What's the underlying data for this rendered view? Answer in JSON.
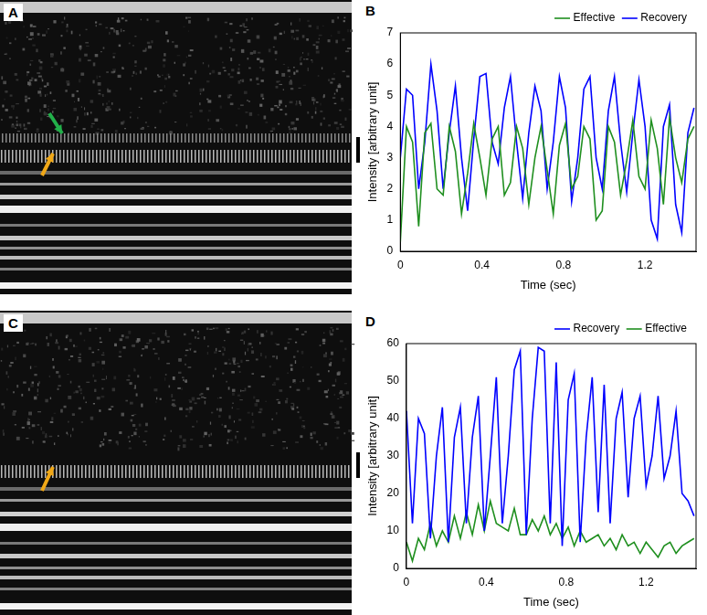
{
  "images": [
    {
      "panel": "A"
    },
    {
      "panel": "C"
    }
  ],
  "chart_data": [
    {
      "panel": "B",
      "type": "line",
      "x_label": "Time (sec)",
      "y_label": "Intensity [arbitrary unit]",
      "x": [
        0,
        0.03,
        0.06,
        0.09,
        0.12,
        0.15,
        0.18,
        0.21,
        0.24,
        0.27,
        0.3,
        0.33,
        0.36,
        0.39,
        0.42,
        0.45,
        0.48,
        0.51,
        0.54,
        0.57,
        0.6,
        0.63,
        0.66,
        0.69,
        0.72,
        0.75,
        0.78,
        0.81,
        0.84,
        0.87,
        0.9,
        0.93,
        0.96,
        0.99,
        1.02,
        1.05,
        1.08,
        1.11,
        1.14,
        1.17,
        1.2,
        1.23,
        1.26,
        1.29,
        1.32,
        1.35,
        1.38,
        1.41,
        1.44
      ],
      "series": [
        {
          "name": "Effective",
          "color": "#1f8f1f",
          "values": [
            0.3,
            4.0,
            3.5,
            0.8,
            3.8,
            4.1,
            2.0,
            1.8,
            4.0,
            3.2,
            1.2,
            2.5,
            4.1,
            3.0,
            1.8,
            3.6,
            4.0,
            1.8,
            2.2,
            4.0,
            3.3,
            1.5,
            3.0,
            4.0,
            2.6,
            1.2,
            3.4,
            4.1,
            2.0,
            2.4,
            4.0,
            3.6,
            1.0,
            1.3,
            4.0,
            3.5,
            1.8,
            2.9,
            4.2,
            2.4,
            2.0,
            4.2,
            3.3,
            1.5,
            4.3,
            3.0,
            2.2,
            3.6,
            4.0
          ]
        },
        {
          "name": "Recovery",
          "color": "#0000ff",
          "values": [
            3.0,
            5.2,
            5.0,
            2.0,
            3.5,
            6.0,
            4.5,
            2.0,
            3.8,
            5.3,
            3.0,
            1.3,
            3.6,
            5.6,
            5.7,
            3.5,
            2.8,
            4.6,
            5.6,
            3.5,
            1.7,
            3.8,
            5.3,
            4.5,
            2.0,
            3.5,
            5.6,
            4.6,
            1.6,
            3.0,
            5.2,
            5.6,
            3.0,
            2.0,
            4.5,
            5.6,
            3.5,
            1.9,
            3.8,
            5.5,
            4.0,
            1.0,
            0.4,
            4.0,
            4.7,
            1.5,
            0.6,
            3.8,
            4.6
          ]
        }
      ],
      "xlim": [
        0,
        1.45
      ],
      "xticks": [
        0,
        0.4,
        0.8,
        1.2
      ],
      "ylim": [
        0,
        7
      ],
      "yticks": [
        0,
        1,
        2,
        3,
        4,
        5,
        6,
        7
      ],
      "grid": false,
      "legend": "top-right"
    },
    {
      "panel": "D",
      "type": "line",
      "x_label": "Time (sec)",
      "y_label": "Intensity [arbitrary unit]",
      "x": [
        0,
        0.03,
        0.06,
        0.09,
        0.12,
        0.15,
        0.18,
        0.21,
        0.24,
        0.27,
        0.3,
        0.33,
        0.36,
        0.39,
        0.42,
        0.45,
        0.48,
        0.51,
        0.54,
        0.57,
        0.6,
        0.63,
        0.66,
        0.69,
        0.72,
        0.75,
        0.78,
        0.81,
        0.84,
        0.87,
        0.9,
        0.93,
        0.96,
        0.99,
        1.02,
        1.05,
        1.08,
        1.11,
        1.14,
        1.17,
        1.2,
        1.23,
        1.26,
        1.29,
        1.32,
        1.35,
        1.38,
        1.41,
        1.44
      ],
      "series": [
        {
          "name": "Recovery",
          "color": "#0000ff",
          "values": [
            42,
            12,
            40,
            36,
            8,
            30,
            43,
            7,
            35,
            43,
            12,
            35,
            46,
            10,
            30,
            51,
            12,
            30,
            53,
            58,
            9,
            40,
            59,
            58,
            12,
            55,
            6,
            45,
            52,
            7,
            35,
            51,
            15,
            49,
            12,
            40,
            47,
            19,
            40,
            46,
            22,
            30,
            46,
            24,
            30,
            42,
            20,
            18,
            14
          ]
        },
        {
          "name": "Effective",
          "color": "#1f8f1f",
          "values": [
            7,
            2,
            8,
            5,
            12,
            6,
            10,
            7,
            14,
            8,
            15,
            9,
            17,
            10,
            18,
            12,
            11,
            10,
            16,
            9,
            9,
            13,
            10,
            14,
            9,
            12,
            8,
            11,
            6,
            10,
            7,
            8,
            9,
            6,
            8,
            5,
            9,
            6,
            7,
            4,
            7,
            5,
            3,
            6,
            7,
            4,
            6,
            7,
            8
          ]
        }
      ],
      "xlim": [
        0,
        1.45
      ],
      "xticks": [
        0,
        0.4,
        0.8,
        1.2
      ],
      "ylim": [
        0,
        60
      ],
      "yticks": [
        0,
        10,
        20,
        30,
        40,
        50,
        60
      ],
      "grid": false,
      "legend": "top-right"
    }
  ]
}
